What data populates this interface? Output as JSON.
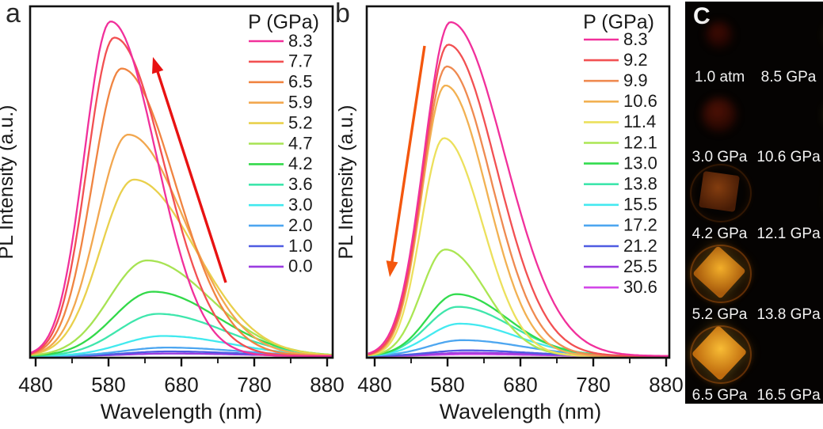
{
  "figure": {
    "panel_a_label": "a",
    "panel_b_label": "b",
    "panel_c_label": "C"
  },
  "chart_data": [
    {
      "id": "a",
      "type": "line",
      "title": "",
      "xlabel": "Wavelength (nm)",
      "ylabel": "PL Intensity (a.u.)",
      "xlim": [
        480,
        880
      ],
      "x_ticks": [
        480,
        580,
        680,
        780,
        880
      ],
      "x_minor_ticks": [
        530,
        630,
        730,
        830
      ],
      "ylim": [
        0,
        1
      ],
      "grid": false,
      "legend_title": "P (GPa)",
      "legend_position": "top-right",
      "arrow": {
        "direction": "up",
        "color": "#e81212",
        "meaning": "PL intensity increases with pressure"
      },
      "series": [
        {
          "pressure_gpa": "8.3",
          "color": "#f1309b",
          "peak_nm": 583,
          "peak_intensity": 0.952,
          "sigma_left_nm": 36,
          "sigma_right_nm": 62
        },
        {
          "pressure_gpa": "7.7",
          "color": "#f25052",
          "peak_nm": 588,
          "peak_intensity": 0.906,
          "sigma_left_nm": 37,
          "sigma_right_nm": 68
        },
        {
          "pressure_gpa": "6.5",
          "color": "#f08441",
          "peak_nm": 598,
          "peak_intensity": 0.818,
          "sigma_left_nm": 40,
          "sigma_right_nm": 73
        },
        {
          "pressure_gpa": "5.9",
          "color": "#f2a74f",
          "peak_nm": 607,
          "peak_intensity": 0.63,
          "sigma_left_nm": 43,
          "sigma_right_nm": 78
        },
        {
          "pressure_gpa": "5.2",
          "color": "#e9d04c",
          "peak_nm": 615,
          "peak_intensity": 0.502,
          "sigma_left_nm": 46,
          "sigma_right_nm": 84
        },
        {
          "pressure_gpa": "4.7",
          "color": "#a7e353",
          "peak_nm": 633,
          "peak_intensity": 0.272,
          "sigma_left_nm": 52,
          "sigma_right_nm": 86
        },
        {
          "pressure_gpa": "4.2",
          "color": "#33d94a",
          "peak_nm": 641,
          "peak_intensity": 0.183,
          "sigma_left_nm": 54,
          "sigma_right_nm": 88
        },
        {
          "pressure_gpa": "3.6",
          "color": "#3fe6ac",
          "peak_nm": 648,
          "peak_intensity": 0.12,
          "sigma_left_nm": 55,
          "sigma_right_nm": 90
        },
        {
          "pressure_gpa": "3.0",
          "color": "#41e9ee",
          "peak_nm": 655,
          "peak_intensity": 0.057,
          "sigma_left_nm": 56,
          "sigma_right_nm": 92
        },
        {
          "pressure_gpa": "2.0",
          "color": "#4da6f0",
          "peak_nm": 660,
          "peak_intensity": 0.024,
          "sigma_left_nm": 58,
          "sigma_right_nm": 94
        },
        {
          "pressure_gpa": "1.0",
          "color": "#4f5ce2",
          "peak_nm": 663,
          "peak_intensity": 0.013,
          "sigma_left_nm": 58,
          "sigma_right_nm": 94
        },
        {
          "pressure_gpa": "0.0",
          "color": "#9b3ce0",
          "peak_nm": 665,
          "peak_intensity": 0.007,
          "sigma_left_nm": 58,
          "sigma_right_nm": 94
        }
      ]
    },
    {
      "id": "b",
      "type": "line",
      "title": "",
      "xlabel": "Wavelength (nm)",
      "ylabel": "PL Intensity (a.u.)",
      "xlim": [
        480,
        880
      ],
      "x_ticks": [
        480,
        580,
        680,
        780,
        880
      ],
      "x_minor_ticks": [
        530,
        630,
        730,
        830
      ],
      "ylim": [
        0,
        1
      ],
      "grid": false,
      "legend_title": "P (GPa)",
      "legend_position": "top-right",
      "arrow": {
        "direction": "down",
        "color": "#f4570e",
        "meaning": "PL intensity decreases with pressure"
      },
      "series": [
        {
          "pressure_gpa": "8.3",
          "color": "#f1309b",
          "peak_nm": 584,
          "peak_intensity": 0.95,
          "sigma_left_nm": 36,
          "sigma_right_nm": 74
        },
        {
          "pressure_gpa": "9.2",
          "color": "#f25052",
          "peak_nm": 581,
          "peak_intensity": 0.886,
          "sigma_left_nm": 34,
          "sigma_right_nm": 66
        },
        {
          "pressure_gpa": "9.9",
          "color": "#ef8a50",
          "peak_nm": 579,
          "peak_intensity": 0.824,
          "sigma_left_nm": 33,
          "sigma_right_nm": 61
        },
        {
          "pressure_gpa": "10.6",
          "color": "#f2b152",
          "peak_nm": 577,
          "peak_intensity": 0.77,
          "sigma_left_nm": 32,
          "sigma_right_nm": 57
        },
        {
          "pressure_gpa": "11.4",
          "color": "#ece05c",
          "peak_nm": 575,
          "peak_intensity": 0.62,
          "sigma_left_nm": 31,
          "sigma_right_nm": 53
        },
        {
          "pressure_gpa": "12.1",
          "color": "#abe653",
          "peak_nm": 577,
          "peak_intensity": 0.303,
          "sigma_left_nm": 33,
          "sigma_right_nm": 56
        },
        {
          "pressure_gpa": "13.0",
          "color": "#32dc4e",
          "peak_nm": 592,
          "peak_intensity": 0.176,
          "sigma_left_nm": 40,
          "sigma_right_nm": 70
        },
        {
          "pressure_gpa": "13.8",
          "color": "#3fe6ac",
          "peak_nm": 594,
          "peak_intensity": 0.14,
          "sigma_left_nm": 42,
          "sigma_right_nm": 74
        },
        {
          "pressure_gpa": "15.5",
          "color": "#44e9f0",
          "peak_nm": 597,
          "peak_intensity": 0.092,
          "sigma_left_nm": 44,
          "sigma_right_nm": 78
        },
        {
          "pressure_gpa": "17.2",
          "color": "#4da6f0",
          "peak_nm": 600,
          "peak_intensity": 0.045,
          "sigma_left_nm": 46,
          "sigma_right_nm": 82
        },
        {
          "pressure_gpa": "21.2",
          "color": "#4f5ce2",
          "peak_nm": 605,
          "peak_intensity": 0.016,
          "sigma_left_nm": 48,
          "sigma_right_nm": 84
        },
        {
          "pressure_gpa": "25.5",
          "color": "#9b3ce0",
          "peak_nm": 608,
          "peak_intensity": 0.009,
          "sigma_left_nm": 48,
          "sigma_right_nm": 84
        },
        {
          "pressure_gpa": "30.6",
          "color": "#d348e8",
          "peak_nm": 610,
          "peak_intensity": 0.005,
          "sigma_left_nm": 48,
          "sigma_right_nm": 84
        }
      ]
    }
  ],
  "photo_panel": {
    "label": "C",
    "background": "#050302",
    "cells": [
      {
        "label": "1.0 atm",
        "col": 0,
        "row": 0,
        "shape": "blob",
        "ring": false,
        "bright": false,
        "colors": [
          "#4a0d04",
          "#160200"
        ],
        "size": 34,
        "rotate": 0
      },
      {
        "label": "8.5 GPa",
        "col": 1,
        "row": 0,
        "shape": "diamond",
        "ring": true,
        "bright": true,
        "colors": [
          "#ffe84d",
          "#d99a0e"
        ],
        "size": 48,
        "rotate": 45
      },
      {
        "label": "3.0 GPa",
        "col": 0,
        "row": 1,
        "shape": "blob",
        "ring": false,
        "bright": false,
        "colors": [
          "#5a1407",
          "#1c0400"
        ],
        "size": 44,
        "rotate": 0
      },
      {
        "label": "10.6 GPa",
        "col": 1,
        "row": 1,
        "shape": "diamond",
        "ring": true,
        "bright": true,
        "colors": [
          "#eef060",
          "#93a81a"
        ],
        "size": 50,
        "rotate": 45
      },
      {
        "label": "4.2 GPa",
        "col": 0,
        "row": 2,
        "shape": "square",
        "ring": true,
        "bright": false,
        "colors": [
          "#8a4010",
          "#4a1d06"
        ],
        "size": 46,
        "rotate": 8
      },
      {
        "label": "12.1 GPa",
        "col": 1,
        "row": 2,
        "shape": "square",
        "ring": true,
        "bright": true,
        "colors": [
          "#c2cc42",
          "#6f6414"
        ],
        "size": 54,
        "rotate": 6
      },
      {
        "label": "5.2 GPa",
        "col": 0,
        "row": 3,
        "shape": "diamond",
        "ring": true,
        "bright": true,
        "colors": [
          "#f2ae2a",
          "#a85b0c"
        ],
        "size": 48,
        "rotate": 42
      },
      {
        "label": "13.8 GPa",
        "col": 1,
        "row": 3,
        "shape": "square",
        "ring": false,
        "bright": false,
        "colors": [
          "#5c5216",
          "#2c2206"
        ],
        "size": 46,
        "rotate": 7
      },
      {
        "label": "6.5 GPa",
        "col": 1,
        "row": 4,
        "shape": "diamond",
        "ring": true,
        "bright": true,
        "colors": [
          "#f8bc35",
          "#c06c0e"
        ],
        "size": 50,
        "rotate": 43,
        "col_override": 0
      },
      {
        "label": "16.5 GPa",
        "col": 1,
        "row": 4,
        "shape": "square",
        "ring": false,
        "bright": false,
        "colors": [
          "#583911",
          "#241503"
        ],
        "size": 46,
        "rotate": 5
      }
    ]
  }
}
